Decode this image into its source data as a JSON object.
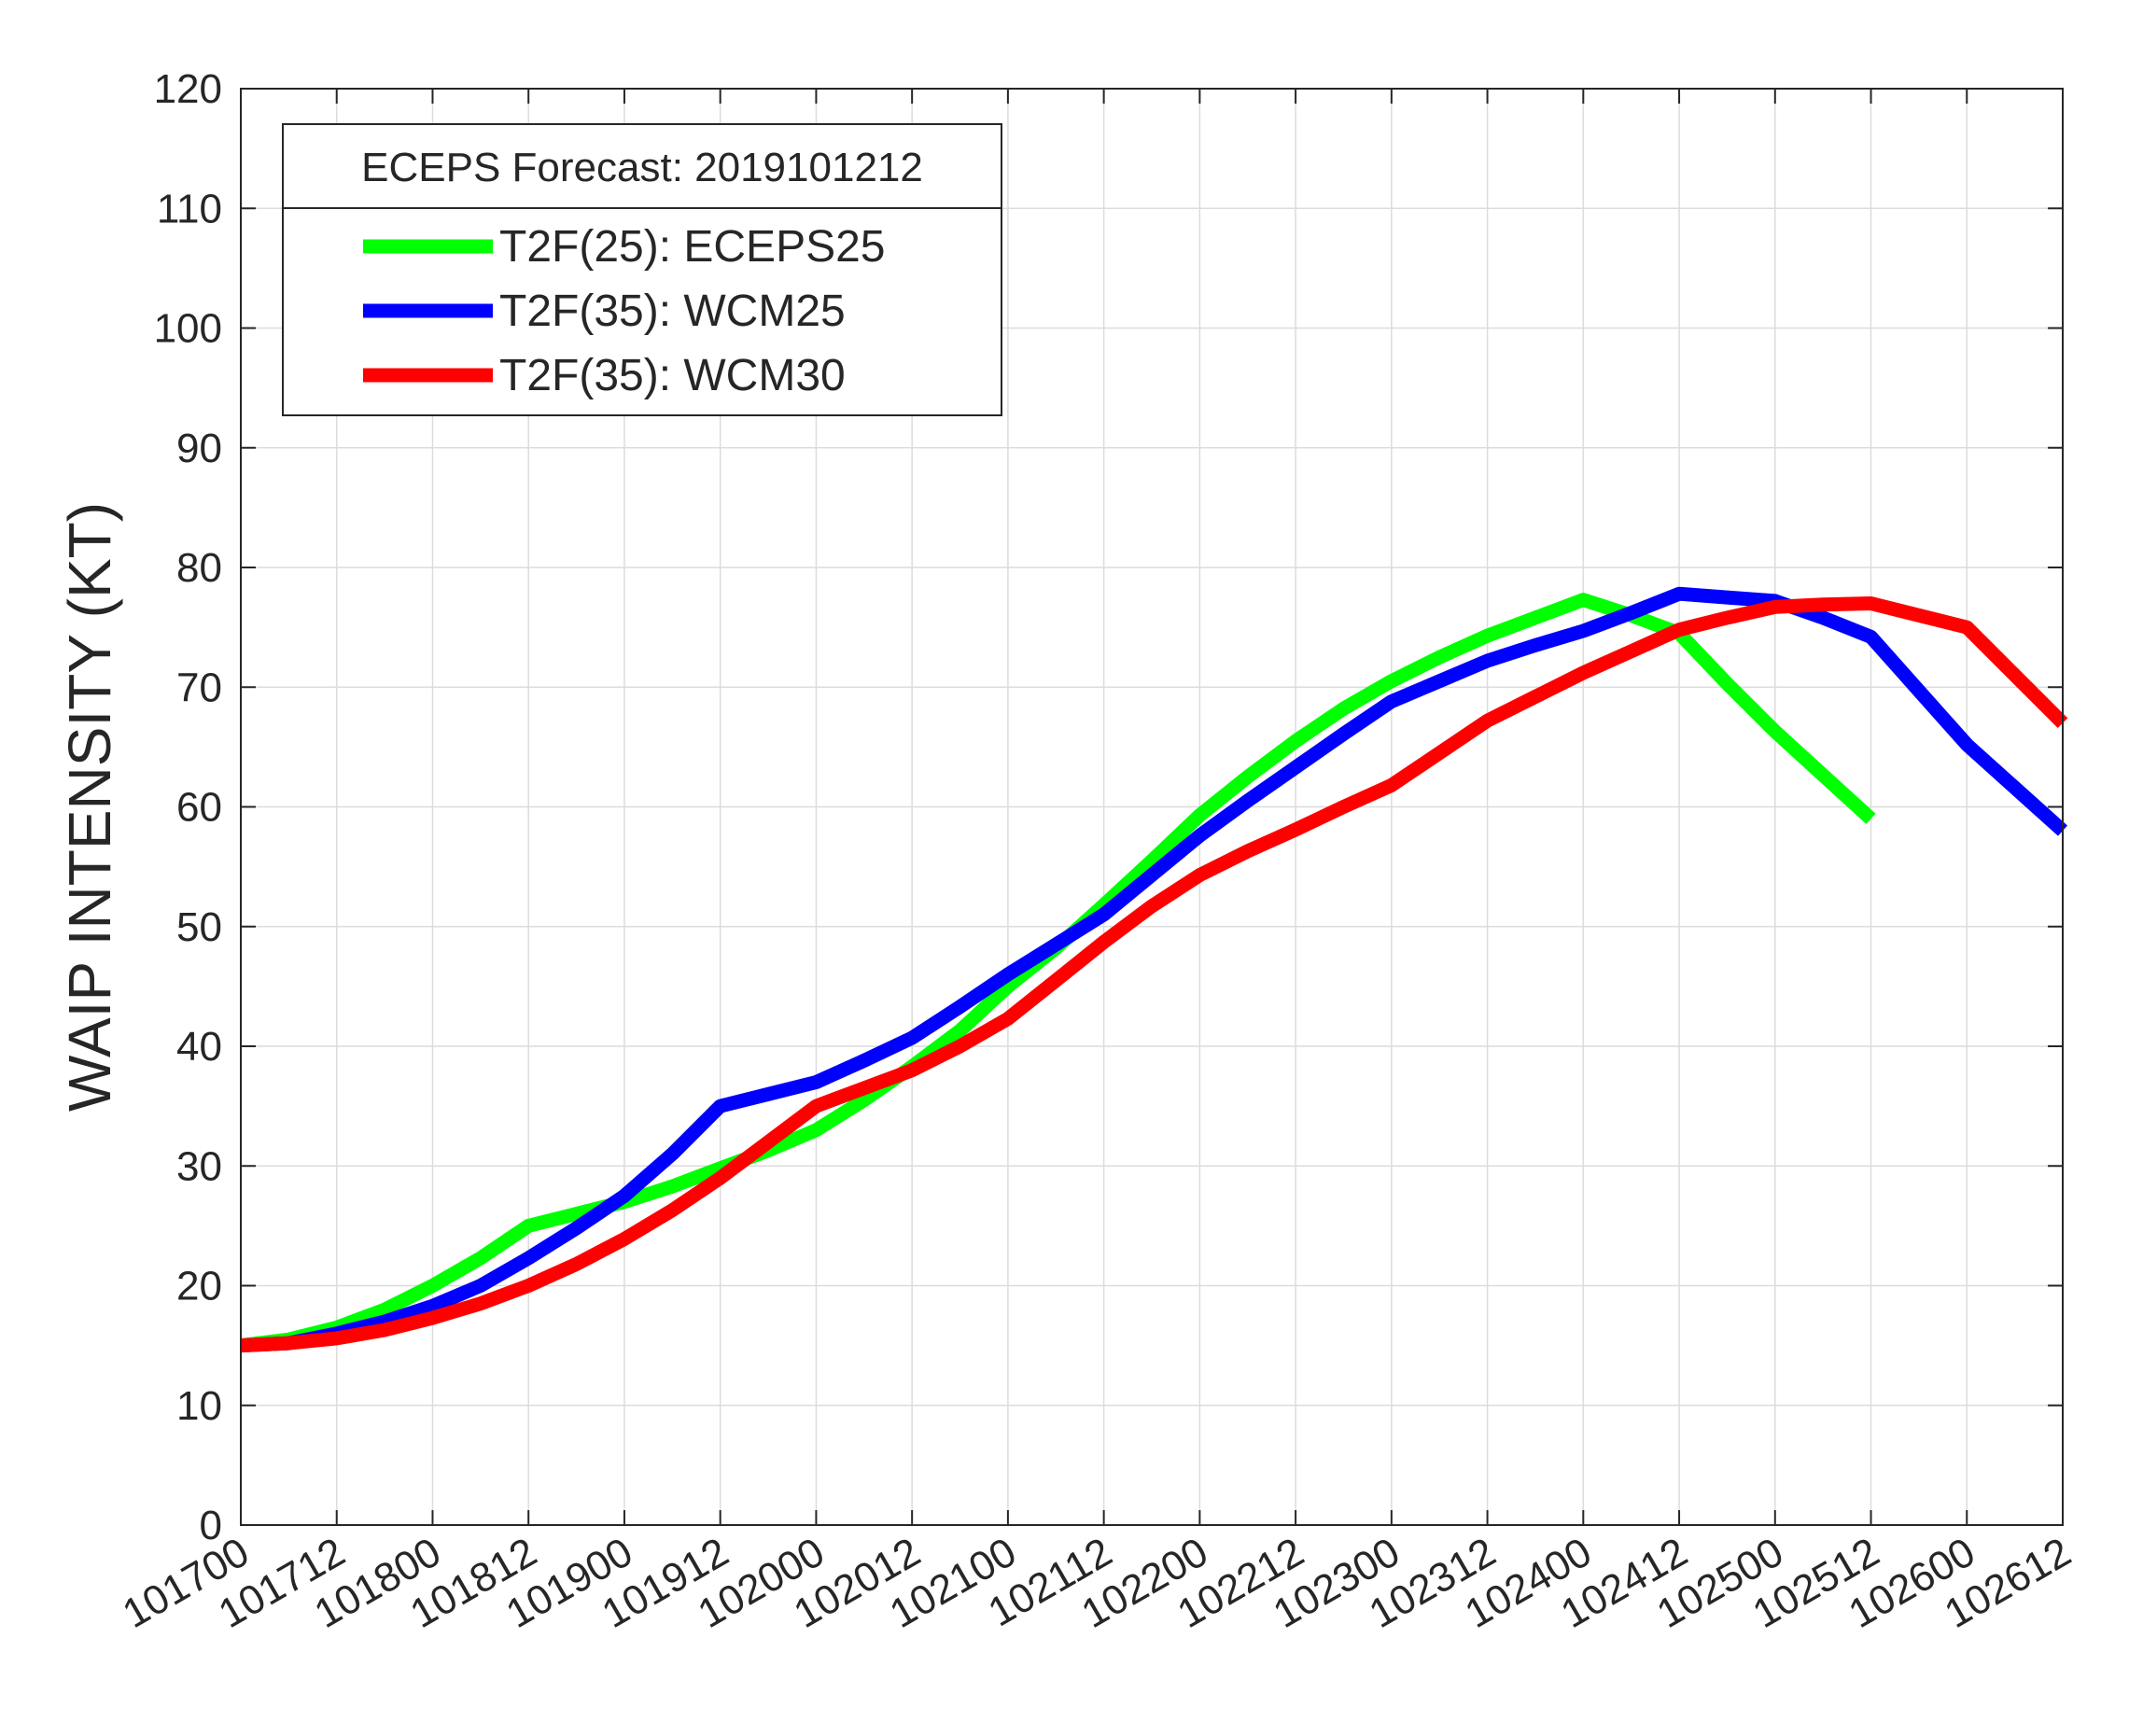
{
  "chart_data": {
    "type": "line",
    "title": "",
    "xlabel": "",
    "ylabel": "WAIP INTENSITY (KT)",
    "ylim": [
      0,
      120
    ],
    "yticks": [
      0,
      10,
      20,
      30,
      40,
      50,
      60,
      70,
      80,
      90,
      100,
      110,
      120
    ],
    "xlim": [
      0,
      9.5
    ],
    "xtick_labels": [
      "101700",
      "101712",
      "101800",
      "101812",
      "101900",
      "101912",
      "102000",
      "102012",
      "102100",
      "102112",
      "102200",
      "102212",
      "102300",
      "102312",
      "102400",
      "102412",
      "102500",
      "102512",
      "102600",
      "102612"
    ],
    "grid": true,
    "legend": {
      "title": "ECEPS Forecast: 2019101212",
      "position": "top-left"
    },
    "series": [
      {
        "name": "T2F(25): ECEPS25",
        "color": "#00ff00",
        "x": [
          0,
          0.25,
          0.5,
          0.75,
          1,
          1.25,
          1.5,
          1.75,
          2,
          2.25,
          2.5,
          2.75,
          3,
          3.25,
          3.5,
          3.75,
          4,
          4.25,
          4.5,
          4.75,
          5,
          5.25,
          5.5,
          5.75,
          6,
          6.25,
          6.5,
          6.75,
          7,
          7.25,
          7.5,
          7.75,
          8,
          8.5
        ],
        "y": [
          15,
          15.5,
          16.5,
          18,
          20,
          22.3,
          25,
          26,
          27,
          28.3,
          29.8,
          31.3,
          33,
          35.5,
          38.3,
          41.3,
          45,
          48.2,
          51.8,
          55.5,
          59.3,
          62.5,
          65.5,
          68.2,
          70.5,
          72.5,
          74.3,
          75.8,
          77.3,
          76,
          74.5,
          70.3,
          66.3,
          59
        ]
      },
      {
        "name": "T2F(35): WCM25",
        "color": "#0000ff",
        "x": [
          0,
          0.25,
          0.5,
          0.75,
          1,
          1.25,
          1.5,
          1.75,
          2,
          2.25,
          2.5,
          2.75,
          3,
          3.25,
          3.5,
          3.75,
          4,
          4.25,
          4.5,
          4.75,
          5,
          5.25,
          5.5,
          5.75,
          6,
          6.25,
          6.5,
          6.75,
          7,
          7.25,
          7.5,
          7.75,
          8,
          8.25,
          8.5,
          8.75,
          9,
          9.5
        ],
        "y": [
          15,
          15.2,
          16,
          17,
          18.3,
          20,
          22.3,
          24.8,
          27.5,
          31,
          35,
          36,
          37,
          38.8,
          40.7,
          43.3,
          46,
          48.5,
          51,
          54.3,
          57.6,
          60.5,
          63.3,
          66.1,
          68.8,
          70.5,
          72.2,
          73.5,
          74.7,
          76.2,
          77.8,
          77.5,
          77.2,
          75.8,
          74.2,
          69.7,
          65.2,
          58
        ]
      },
      {
        "name": "T2F(35): WCM30",
        "color": "#ff0000",
        "x": [
          0,
          0.25,
          0.5,
          0.75,
          1,
          1.25,
          1.5,
          1.75,
          2,
          2.25,
          2.5,
          2.75,
          3,
          3.25,
          3.5,
          3.75,
          4,
          4.25,
          4.5,
          4.75,
          5,
          5.25,
          5.5,
          5.75,
          6,
          6.25,
          6.5,
          6.75,
          7,
          7.25,
          7.5,
          7.75,
          8,
          8.25,
          8.5,
          9,
          9.5
        ],
        "y": [
          15,
          15.2,
          15.6,
          16.3,
          17.3,
          18.5,
          20,
          21.8,
          23.9,
          26.3,
          29,
          32,
          35,
          36.5,
          38,
          40,
          42.3,
          45.5,
          48.7,
          51.7,
          54.3,
          56.3,
          58.1,
          60,
          61.8,
          64.5,
          67.2,
          69.2,
          71.2,
          73,
          74.8,
          75.8,
          76.7,
          76.9,
          77,
          75,
          67
        ]
      }
    ]
  }
}
